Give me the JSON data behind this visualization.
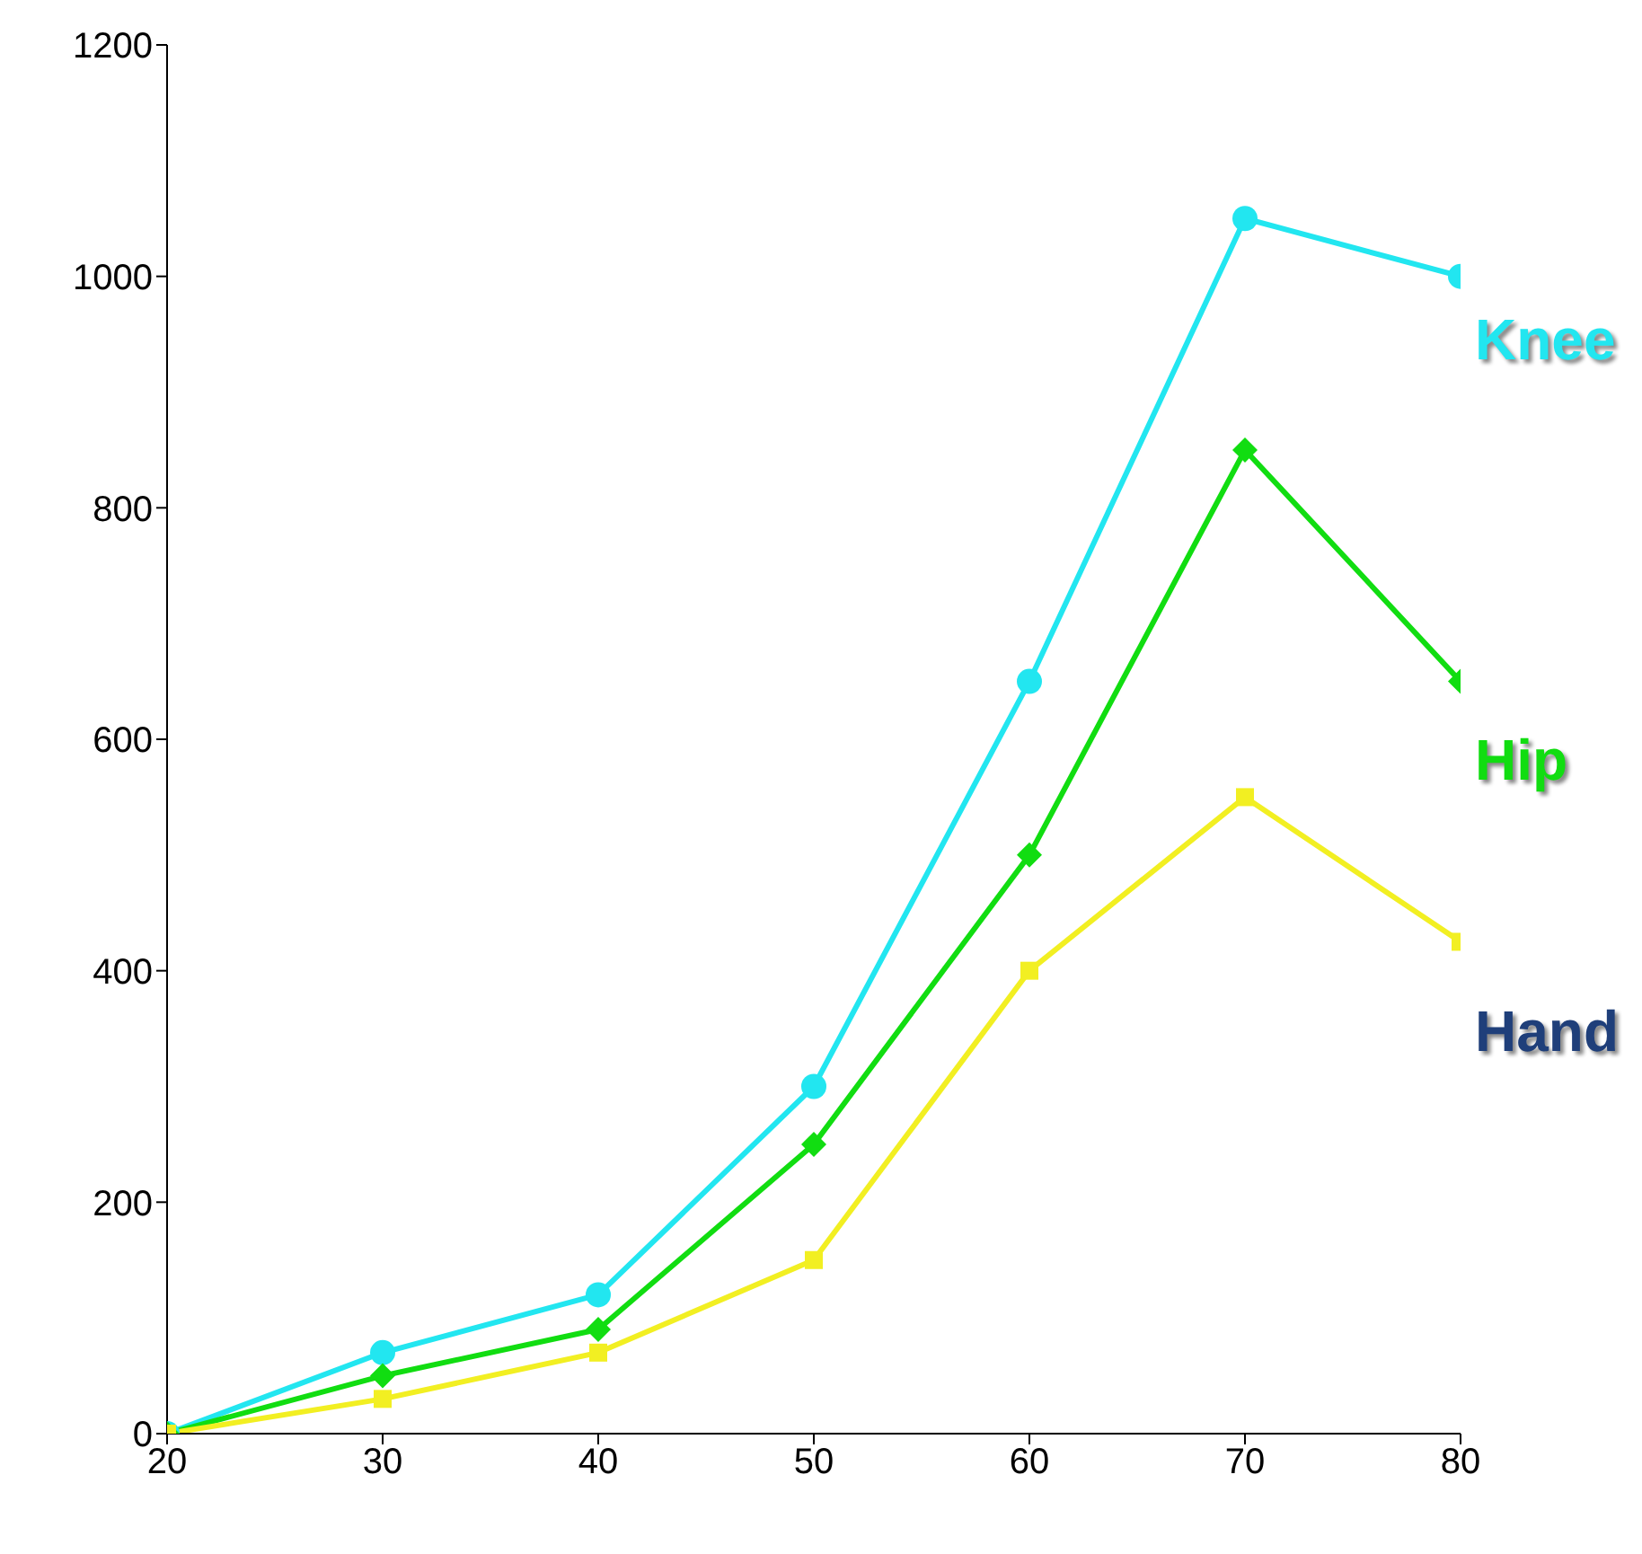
{
  "chart_data": {
    "type": "line",
    "x": [
      20,
      30,
      40,
      50,
      60,
      70,
      80
    ],
    "series": [
      {
        "name": "Knee",
        "color": "#22e6f0",
        "marker": "circle",
        "values": [
          0,
          70,
          120,
          300,
          650,
          1050,
          1000
        ]
      },
      {
        "name": "Hip",
        "color": "#11dd11",
        "marker": "diamond",
        "values": [
          0,
          50,
          90,
          250,
          500,
          850,
          650
        ]
      },
      {
        "name": "Hand",
        "color": "#f2ef22",
        "marker": "square",
        "values": [
          0,
          30,
          70,
          150,
          400,
          550,
          425
        ]
      }
    ],
    "xlim": [
      20,
      80
    ],
    "xticks": [
      20,
      30,
      40,
      50,
      60,
      70,
      80
    ],
    "ylim": [
      0,
      1200
    ],
    "yticks": [
      0,
      200,
      400,
      600,
      800,
      1000,
      1200
    ],
    "legend": "right"
  }
}
